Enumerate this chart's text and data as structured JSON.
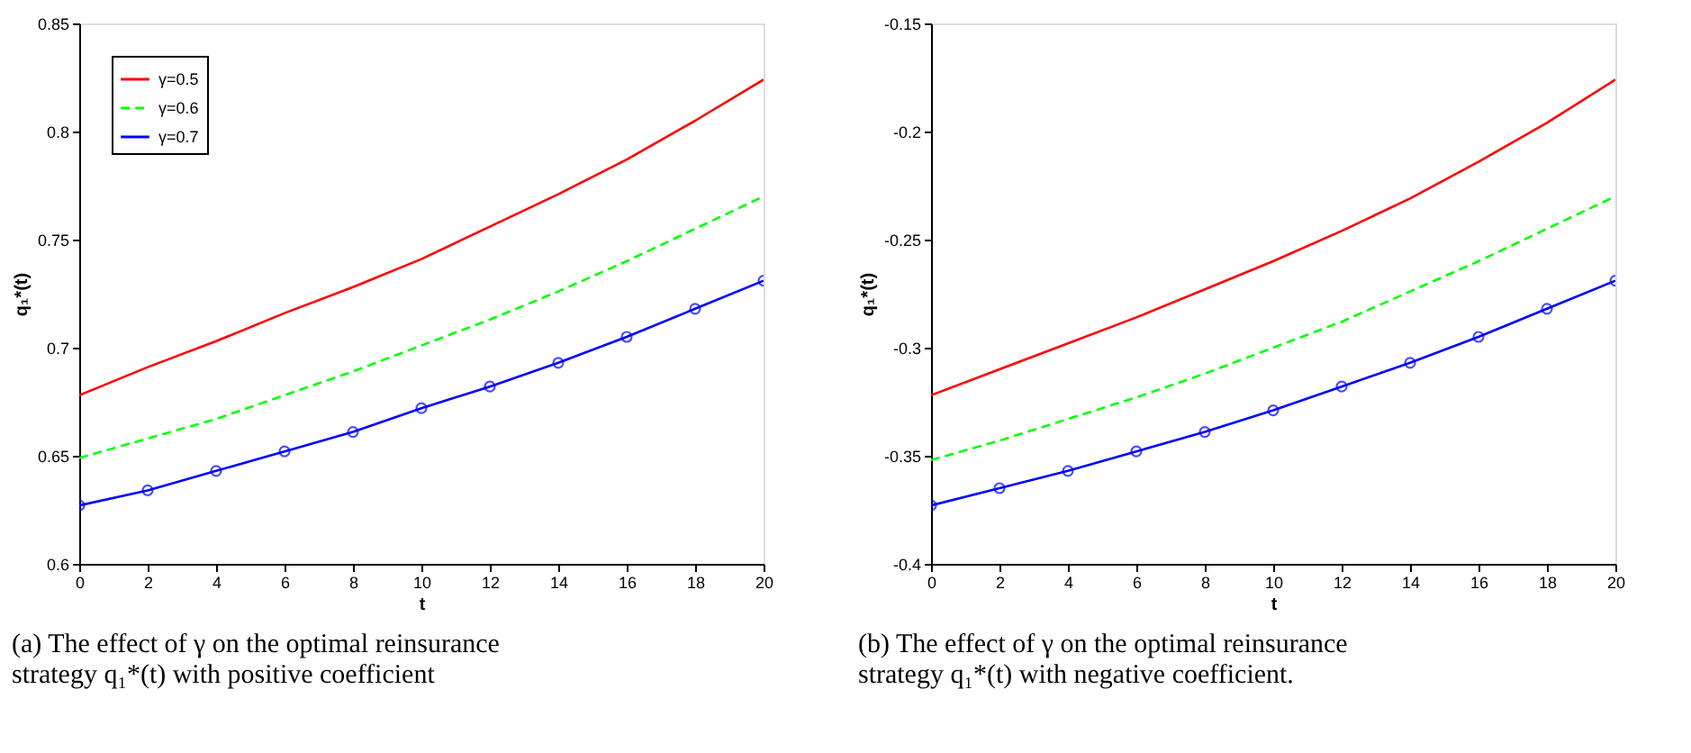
{
  "chart_data": [
    {
      "type": "line",
      "xlabel": "t",
      "ylabel": "q₁*(t)",
      "xlim": [
        0,
        20
      ],
      "xticks": [
        0,
        2,
        4,
        6,
        8,
        10,
        12,
        14,
        16,
        18,
        20
      ],
      "ylim": [
        0.6,
        0.85
      ],
      "yticks": [
        0.6,
        0.65,
        0.7,
        0.75,
        0.8,
        0.85
      ],
      "grid": false,
      "legend": "top left",
      "x": [
        0,
        2,
        4,
        6,
        8,
        10,
        12,
        14,
        16,
        18,
        20
      ],
      "series": [
        {
          "name": "γ=0.5",
          "color": "#ff0000",
          "line_style": "solid",
          "marker": "none",
          "values": [
            0.678,
            0.691,
            0.703,
            0.716,
            0.728,
            0.741,
            0.756,
            0.771,
            0.787,
            0.805,
            0.824
          ]
        },
        {
          "name": "γ=0.6",
          "color": "#00ff00",
          "line_style": "dashed",
          "marker": "none",
          "values": [
            0.649,
            0.658,
            0.667,
            0.678,
            0.689,
            0.701,
            0.713,
            0.726,
            0.74,
            0.755,
            0.77
          ]
        },
        {
          "name": "γ=0.7",
          "color": "#0000ff",
          "line_style": "solid",
          "marker": "circle",
          "values": [
            0.627,
            0.634,
            0.643,
            0.652,
            0.661,
            0.672,
            0.682,
            0.693,
            0.705,
            0.718,
            0.731
          ]
        }
      ],
      "annotations": [
        "(a) The effect of γ on the optimal reinsurance strategy q₁*(t) with positive coefficient"
      ]
    },
    {
      "type": "line",
      "xlabel": "t",
      "ylabel": "q₁*(t)",
      "xlim": [
        0,
        20
      ],
      "xticks": [
        0,
        2,
        4,
        6,
        8,
        10,
        12,
        14,
        16,
        18,
        20
      ],
      "ylim": [
        -0.4,
        -0.15
      ],
      "yticks": [
        -0.4,
        -0.35,
        -0.3,
        -0.25,
        -0.2,
        -0.15
      ],
      "grid": false,
      "legend": "top left",
      "x": [
        0,
        2,
        4,
        6,
        8,
        10,
        12,
        14,
        16,
        18,
        20
      ],
      "series": [
        {
          "name": "γ=0.5",
          "color": "#ff0000",
          "line_style": "solid",
          "marker": "none",
          "values": [
            -0.322,
            -0.31,
            -0.298,
            -0.286,
            -0.273,
            -0.26,
            -0.246,
            -0.231,
            -0.214,
            -0.196,
            -0.176
          ]
        },
        {
          "name": "γ=0.6",
          "color": "#00ff00",
          "line_style": "dashed",
          "marker": "none",
          "values": [
            -0.352,
            -0.343,
            -0.333,
            -0.323,
            -0.312,
            -0.3,
            -0.288,
            -0.274,
            -0.26,
            -0.245,
            -0.23
          ]
        },
        {
          "name": "γ=0.7",
          "color": "#0000ff",
          "line_style": "solid",
          "marker": "circle",
          "values": [
            -0.373,
            -0.365,
            -0.357,
            -0.348,
            -0.339,
            -0.329,
            -0.318,
            -0.307,
            -0.295,
            -0.282,
            -0.269
          ]
        }
      ],
      "annotations": [
        "(b) The effect of γ on the optimal reinsurance strategy q₁*(t) with negative coefficient."
      ]
    }
  ]
}
